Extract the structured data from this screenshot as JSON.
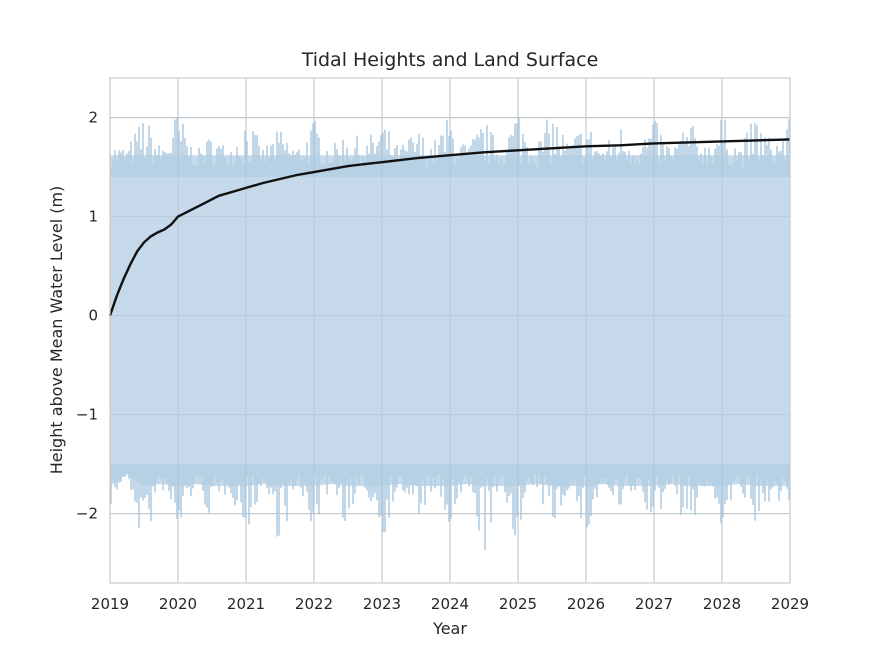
{
  "chart_data": {
    "type": "area",
    "title": "Tidal Heights and Land Surface",
    "xlabel": "Year",
    "ylabel": "Height above Mean Water Level (m)",
    "xlim": [
      2019,
      2029
    ],
    "ylim": [
      -2.7,
      2.4
    ],
    "xticks": [
      {
        "value": 2019,
        "label": "2019"
      },
      {
        "value": 2020,
        "label": "2020"
      },
      {
        "value": 2021,
        "label": "2021"
      },
      {
        "value": 2022,
        "label": "2022"
      },
      {
        "value": 2023,
        "label": "2023"
      },
      {
        "value": 2024,
        "label": "2024"
      },
      {
        "value": 2025,
        "label": "2025"
      },
      {
        "value": 2026,
        "label": "2026"
      },
      {
        "value": 2027,
        "label": "2027"
      },
      {
        "value": 2028,
        "label": "2028"
      },
      {
        "value": 2029,
        "label": "2029"
      }
    ],
    "yticks": [
      {
        "value": 2,
        "label": "2"
      },
      {
        "value": 1,
        "label": "1"
      },
      {
        "value": 0,
        "label": "0"
      },
      {
        "value": -1,
        "label": "−1"
      },
      {
        "value": -2,
        "label": "−2"
      }
    ],
    "grid": true,
    "series": [
      {
        "kind": "tidal-band",
        "color": "#c5d9ea",
        "spike_color": "#b3cde3",
        "x": [
          2019.0,
          2019.25,
          2019.5,
          2019.75,
          2020.0,
          2020.25,
          2020.5,
          2020.75,
          2021.0,
          2021.25,
          2021.5,
          2021.75,
          2022.0,
          2022.25,
          2022.5,
          2022.75,
          2023.0,
          2023.25,
          2023.5,
          2023.75,
          2024.0,
          2024.25,
          2024.5,
          2024.75,
          2025.0,
          2025.25,
          2025.5,
          2025.75,
          2026.0,
          2026.25,
          2026.5,
          2026.75,
          2027.0,
          2027.25,
          2027.5,
          2027.75,
          2028.0,
          2028.25,
          2028.5,
          2028.75,
          2029.0
        ],
        "upper": [
          1.75,
          1.7,
          2.05,
          1.7,
          2.1,
          1.65,
          1.85,
          1.7,
          2.05,
          1.7,
          1.9,
          1.7,
          2.0,
          1.7,
          1.9,
          1.75,
          2.0,
          1.7,
          1.9,
          1.75,
          2.05,
          1.7,
          2.0,
          1.7,
          2.15,
          1.7,
          2.1,
          1.75,
          2.0,
          1.7,
          1.95,
          1.75,
          2.0,
          1.7,
          2.0,
          1.75,
          2.05,
          1.7,
          2.05,
          1.75,
          2.0
        ],
        "lower": [
          -1.95,
          -1.6,
          -2.45,
          -1.7,
          -2.35,
          -1.7,
          -2.1,
          -1.75,
          -2.25,
          -1.7,
          -2.35,
          -1.75,
          -2.2,
          -1.7,
          -2.2,
          -1.75,
          -2.3,
          -1.7,
          -2.15,
          -1.75,
          -2.25,
          -1.7,
          -2.45,
          -1.75,
          -2.35,
          -1.7,
          -2.2,
          -1.75,
          -2.3,
          -1.7,
          -2.1,
          -1.75,
          -2.2,
          -1.7,
          -2.25,
          -1.75,
          -2.15,
          -1.7,
          -2.3,
          -1.75,
          -2.1
        ]
      },
      {
        "kind": "land-surface",
        "color": "#111111",
        "x": [
          2019.0,
          2019.1,
          2019.2,
          2019.3,
          2019.4,
          2019.5,
          2019.6,
          2019.7,
          2019.8,
          2019.9,
          2020.0,
          2020.2,
          2020.4,
          2020.6,
          2020.8,
          2021.0,
          2021.25,
          2021.5,
          2021.75,
          2022.0,
          2022.25,
          2022.5,
          2022.75,
          2023.0,
          2023.5,
          2024.0,
          2024.5,
          2025.0,
          2025.5,
          2026.0,
          2026.5,
          2027.0,
          2027.5,
          2028.0,
          2028.5,
          2029.0
        ],
        "y": [
          0.0,
          0.2,
          0.37,
          0.52,
          0.65,
          0.74,
          0.8,
          0.84,
          0.87,
          0.92,
          1.0,
          1.07,
          1.14,
          1.21,
          1.25,
          1.29,
          1.34,
          1.38,
          1.42,
          1.45,
          1.48,
          1.51,
          1.53,
          1.55,
          1.59,
          1.62,
          1.65,
          1.67,
          1.69,
          1.71,
          1.72,
          1.74,
          1.75,
          1.76,
          1.77,
          1.78
        ]
      }
    ]
  }
}
